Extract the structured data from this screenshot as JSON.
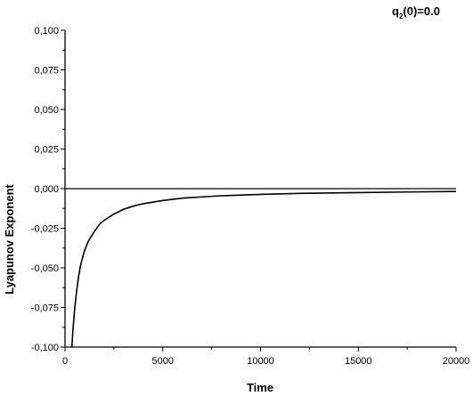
{
  "chart_data": {
    "type": "line",
    "xlabel": "Time",
    "ylabel": "Lyapunov Exponent",
    "annotation": {
      "base": "q",
      "sub": "2",
      "rest": "(0)=0.0"
    },
    "xlim": [
      0,
      20000
    ],
    "ylim": [
      -0.1,
      0.1
    ],
    "x_ticks": [
      "0",
      "5000",
      "10000",
      "15000",
      "20000"
    ],
    "x_tick_values": [
      0,
      5000,
      10000,
      15000,
      20000
    ],
    "y_ticks": [
      "0,100",
      "0,075",
      "0,050",
      "0,025",
      "0,000",
      "-0,025",
      "-0,050",
      "-0,075",
      "-0,100"
    ],
    "y_tick_values": [
      0.1,
      0.075,
      0.05,
      0.025,
      0.0,
      -0.025,
      -0.05,
      -0.075,
      -0.1
    ],
    "reference_line": {
      "y": 0.0
    },
    "series": [
      {
        "x": [
          350,
          400,
          500,
          600,
          700,
          800,
          1000,
          1200,
          1500,
          1800,
          2000,
          2500,
          3000,
          3500,
          4000,
          5000,
          6000,
          7000,
          8000,
          10000,
          12000,
          15000,
          17500,
          20000
        ],
        "y": [
          -0.1,
          -0.09,
          -0.075,
          -0.064,
          -0.055,
          -0.048,
          -0.039,
          -0.033,
          -0.027,
          -0.022,
          -0.02,
          -0.016,
          -0.013,
          -0.011,
          -0.0095,
          -0.0075,
          -0.006,
          -0.0052,
          -0.0045,
          -0.0036,
          -0.003,
          -0.0025,
          -0.0021,
          -0.0018
        ]
      }
    ],
    "colors": {
      "line": "#000000",
      "axis": "#000000"
    }
  }
}
